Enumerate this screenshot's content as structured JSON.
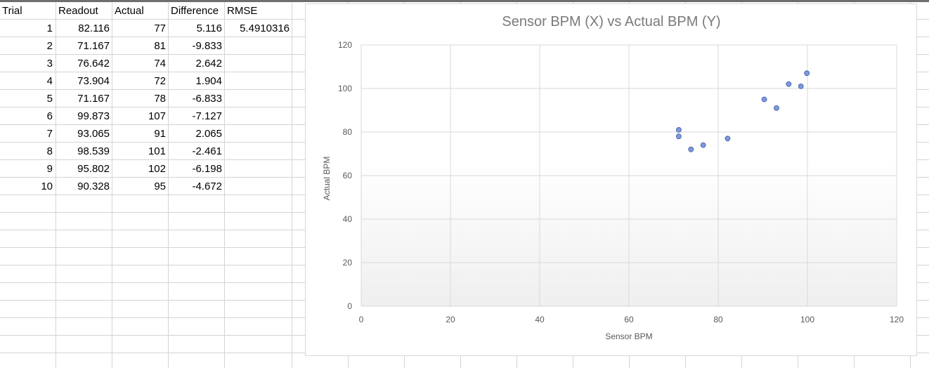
{
  "sheet": {
    "headers": {
      "trial": "Trial",
      "readout": "Readout",
      "actual": "Actual",
      "difference": "Difference",
      "rmse": "RMSE"
    },
    "rows": [
      {
        "trial": "1",
        "readout": "82.116",
        "actual": "77",
        "difference": "5.116"
      },
      {
        "trial": "2",
        "readout": "71.167",
        "actual": "81",
        "difference": "-9.833"
      },
      {
        "trial": "3",
        "readout": "76.642",
        "actual": "74",
        "difference": "2.642"
      },
      {
        "trial": "4",
        "readout": "73.904",
        "actual": "72",
        "difference": "1.904"
      },
      {
        "trial": "5",
        "readout": "71.167",
        "actual": "78",
        "difference": "-6.833"
      },
      {
        "trial": "6",
        "readout": "99.873",
        "actual": "107",
        "difference": "-7.127"
      },
      {
        "trial": "7",
        "readout": "93.065",
        "actual": "91",
        "difference": "2.065"
      },
      {
        "trial": "8",
        "readout": "98.539",
        "actual": "101",
        "difference": "-2.461"
      },
      {
        "trial": "9",
        "readout": "95.802",
        "actual": "102",
        "difference": "-6.198"
      },
      {
        "trial": "10",
        "readout": "90.328",
        "actual": "95",
        "difference": "-4.672"
      }
    ],
    "rmse_value": "5.4910316"
  },
  "chart_data": {
    "type": "scatter",
    "title": "Sensor BPM (X) vs Actual BPM (Y)",
    "xlabel": "Sensor BPM",
    "ylabel": "Actual BPM",
    "xlim": [
      0,
      120
    ],
    "ylim": [
      0,
      120
    ],
    "x_ticks": [
      "0",
      "20",
      "40",
      "60",
      "80",
      "100",
      "120"
    ],
    "y_ticks": [
      "0",
      "20",
      "40",
      "60",
      "80",
      "100",
      "120"
    ],
    "grid": true,
    "legend": "none",
    "points": [
      {
        "x": 82.116,
        "y": 77
      },
      {
        "x": 71.167,
        "y": 81
      },
      {
        "x": 76.642,
        "y": 74
      },
      {
        "x": 73.904,
        "y": 72
      },
      {
        "x": 71.167,
        "y": 78
      },
      {
        "x": 99.873,
        "y": 107
      },
      {
        "x": 93.065,
        "y": 91
      },
      {
        "x": 98.539,
        "y": 101
      },
      {
        "x": 95.802,
        "y": 102
      },
      {
        "x": 90.328,
        "y": 95
      }
    ],
    "marker_color": "#7f98d8",
    "marker_edge_color": "#3a5aa8"
  }
}
